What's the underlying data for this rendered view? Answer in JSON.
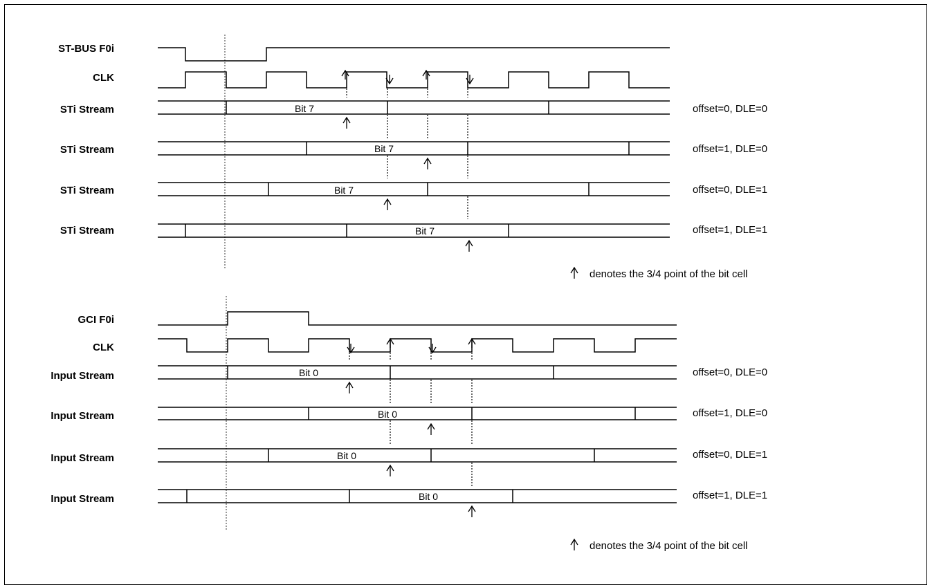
{
  "stbus": {
    "frame_label": "ST-BUS F0i",
    "clk_label": "CLK",
    "rows": [
      {
        "label": "STi Stream",
        "bit": "Bit 7",
        "note": "offset=0, DLE=0"
      },
      {
        "label": "STi Stream",
        "bit": "Bit 7",
        "note": "offset=1, DLE=0"
      },
      {
        "label": "STi Stream",
        "bit": "Bit 7",
        "note": "offset=0, DLE=1"
      },
      {
        "label": "STi Stream",
        "bit": "Bit 7",
        "note": "offset=1, DLE=1"
      }
    ],
    "legend": "denotes the 3/4 point of the bit cell"
  },
  "gci": {
    "frame_label": "GCI F0i",
    "clk_label": "CLK",
    "rows": [
      {
        "label": "Input Stream",
        "bit": "Bit 0",
        "note": "offset=0, DLE=0"
      },
      {
        "label": "Input Stream",
        "bit": "Bit 0",
        "note": "offset=1, DLE=0"
      },
      {
        "label": "Input Stream",
        "bit": "Bit 0",
        "note": "offset=0, DLE=1"
      },
      {
        "label": "Input Stream",
        "bit": "Bit 0",
        "note": "offset=1, DLE=1"
      }
    ],
    "legend": "denotes the 3/4 point of the bit cell"
  },
  "arrow_glyph": "↑"
}
